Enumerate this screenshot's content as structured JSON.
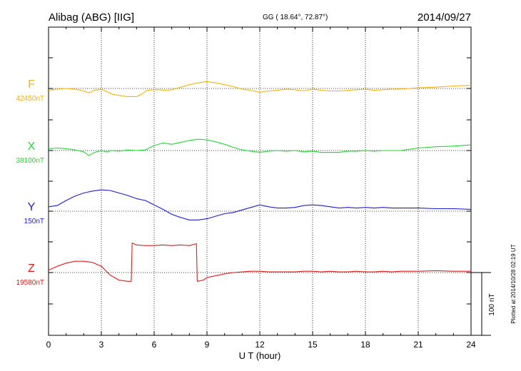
{
  "header": {
    "station": "Alibag (ABG)  [IIG]",
    "coords": "GG ( 18.64°,  72.87°)",
    "date": "2014/09/27"
  },
  "footer": {
    "xlabel": "U T (hour)",
    "plotted": "Plotted at 2014/10/28 02:19 UT",
    "scale": "100 nT"
  },
  "chart_data": {
    "type": "line",
    "title": "Alibag (ABG)  [IIG]",
    "xlabel": "U T (hour)",
    "ylabel": "",
    "xlim": [
      0,
      24
    ],
    "xticks": [
      "0",
      "3",
      "6",
      "9",
      "12",
      "15",
      "18",
      "21",
      "24"
    ],
    "scale_bar_nT": 100,
    "grid": true,
    "series": [
      {
        "name": "F",
        "baseline_label": "42450nT",
        "color": "#f5b316",
        "points": [
          [
            0,
            -3
          ],
          [
            0.5,
            -1
          ],
          [
            1,
            0
          ],
          [
            1.5,
            -1
          ],
          [
            2,
            -4
          ],
          [
            2.3,
            -7
          ],
          [
            2.6,
            -3
          ],
          [
            3,
            -1
          ],
          [
            3.3,
            -5
          ],
          [
            3.6,
            -9
          ],
          [
            4,
            -11
          ],
          [
            4.5,
            -13
          ],
          [
            5,
            -13
          ],
          [
            5.3,
            -9
          ],
          [
            5.6,
            -3
          ],
          [
            6,
            -2
          ],
          [
            6.3,
            -2
          ],
          [
            6.6,
            -3
          ],
          [
            7,
            -2
          ],
          [
            7.5,
            2
          ],
          [
            8,
            6
          ],
          [
            8.5,
            9
          ],
          [
            9,
            11
          ],
          [
            9.5,
            9
          ],
          [
            10,
            6
          ],
          [
            10.5,
            3
          ],
          [
            11,
            -1
          ],
          [
            11.5,
            -3
          ],
          [
            12,
            -6
          ],
          [
            12.5,
            -4
          ],
          [
            13,
            -3
          ],
          [
            13.5,
            -1
          ],
          [
            14,
            -2
          ],
          [
            14.5,
            -4
          ],
          [
            15,
            -1
          ],
          [
            15.5,
            -3
          ],
          [
            16,
            -4
          ],
          [
            16.5,
            -4
          ],
          [
            17,
            -3
          ],
          [
            17.5,
            -2
          ],
          [
            18,
            -1
          ],
          [
            18.5,
            -3
          ],
          [
            19,
            -2
          ],
          [
            19.5,
            -1
          ],
          [
            20,
            -1
          ],
          [
            20.5,
            0
          ],
          [
            21,
            1
          ],
          [
            22,
            2
          ],
          [
            23,
            4
          ],
          [
            24,
            5
          ]
        ]
      },
      {
        "name": "X",
        "baseline_label": "38100nT",
        "color": "#22d933",
        "points": [
          [
            0,
            3
          ],
          [
            0.5,
            4
          ],
          [
            1,
            3
          ],
          [
            1.5,
            1
          ],
          [
            2,
            -2
          ],
          [
            2.3,
            -8
          ],
          [
            2.6,
            -3
          ],
          [
            3,
            0
          ],
          [
            3.3,
            -2
          ],
          [
            3.6,
            0
          ],
          [
            4,
            -1
          ],
          [
            4.5,
            1
          ],
          [
            5,
            0
          ],
          [
            5.5,
            1
          ],
          [
            6,
            8
          ],
          [
            6.5,
            12
          ],
          [
            7,
            10
          ],
          [
            7.5,
            13
          ],
          [
            8,
            16
          ],
          [
            8.5,
            18
          ],
          [
            9,
            17
          ],
          [
            9.5,
            14
          ],
          [
            10,
            10
          ],
          [
            10.5,
            5
          ],
          [
            11,
            1
          ],
          [
            11.5,
            -1
          ],
          [
            12,
            -3
          ],
          [
            12.5,
            -1
          ],
          [
            13,
            0
          ],
          [
            13.5,
            -1
          ],
          [
            14,
            0
          ],
          [
            14.5,
            -2
          ],
          [
            15,
            -1
          ],
          [
            15.5,
            -3
          ],
          [
            16,
            -3
          ],
          [
            16.5,
            -3
          ],
          [
            17,
            -1
          ],
          [
            17.5,
            -1
          ],
          [
            18,
            0
          ],
          [
            18.5,
            -1
          ],
          [
            19,
            0
          ],
          [
            19.5,
            0
          ],
          [
            20,
            0
          ],
          [
            20.5,
            2
          ],
          [
            21,
            4
          ],
          [
            22,
            6
          ],
          [
            23,
            7
          ],
          [
            24,
            9
          ]
        ]
      },
      {
        "name": "Y",
        "baseline_label": "150nT",
        "color": "#1c1cd6",
        "points": [
          [
            0,
            7
          ],
          [
            0.5,
            9
          ],
          [
            1,
            17
          ],
          [
            1.5,
            24
          ],
          [
            2,
            29
          ],
          [
            2.5,
            32
          ],
          [
            3,
            34
          ],
          [
            3.5,
            33
          ],
          [
            4,
            29
          ],
          [
            4.5,
            25
          ],
          [
            5,
            20
          ],
          [
            5.5,
            17
          ],
          [
            6,
            10
          ],
          [
            6.5,
            3
          ],
          [
            7,
            -5
          ],
          [
            7.5,
            -10
          ],
          [
            8,
            -14
          ],
          [
            8.5,
            -14
          ],
          [
            9,
            -12
          ],
          [
            9.5,
            -8
          ],
          [
            10,
            -4
          ],
          [
            10.5,
            -2
          ],
          [
            11,
            2
          ],
          [
            11.5,
            6
          ],
          [
            12,
            10
          ],
          [
            12.5,
            7
          ],
          [
            13,
            5
          ],
          [
            13.5,
            5
          ],
          [
            14,
            6
          ],
          [
            14.5,
            9
          ],
          [
            15,
            10
          ],
          [
            15.5,
            9
          ],
          [
            16,
            7
          ],
          [
            16.5,
            5
          ],
          [
            17,
            6
          ],
          [
            17.5,
            5
          ],
          [
            18,
            6
          ],
          [
            18.5,
            5
          ],
          [
            19,
            6
          ],
          [
            19.5,
            5
          ],
          [
            20,
            5
          ],
          [
            20.5,
            5
          ],
          [
            21,
            5
          ],
          [
            22,
            4
          ],
          [
            23,
            4
          ],
          [
            24,
            3
          ]
        ]
      },
      {
        "name": "Z",
        "baseline_label": "19580nT",
        "color": "#e01c1c",
        "points": [
          [
            0,
            4
          ],
          [
            0.5,
            10
          ],
          [
            1,
            15
          ],
          [
            1.5,
            18
          ],
          [
            2,
            18
          ],
          [
            2.5,
            16
          ],
          [
            3,
            10
          ],
          [
            3.5,
            -4
          ],
          [
            4,
            -12
          ],
          [
            4.5,
            -14
          ],
          [
            4.7,
            -14
          ],
          [
            4.75,
            47
          ],
          [
            5,
            44
          ],
          [
            5.5,
            43
          ],
          [
            6,
            43
          ],
          [
            6.5,
            44
          ],
          [
            7,
            43
          ],
          [
            7.5,
            44
          ],
          [
            8,
            43
          ],
          [
            8.4,
            46
          ],
          [
            8.45,
            -14
          ],
          [
            8.8,
            -12
          ],
          [
            9,
            -8
          ],
          [
            9.5,
            -5
          ],
          [
            10,
            -2
          ],
          [
            10.5,
            0
          ],
          [
            11,
            1
          ],
          [
            11.5,
            2
          ],
          [
            12,
            2
          ],
          [
            12.5,
            1
          ],
          [
            13,
            1
          ],
          [
            13.5,
            1
          ],
          [
            14,
            1
          ],
          [
            14.5,
            2
          ],
          [
            15,
            2
          ],
          [
            15.5,
            1
          ],
          [
            16,
            2
          ],
          [
            16.5,
            1
          ],
          [
            17,
            1
          ],
          [
            17.5,
            2
          ],
          [
            18,
            1
          ],
          [
            18.5,
            1
          ],
          [
            19,
            2
          ],
          [
            19.5,
            1
          ],
          [
            20,
            2
          ],
          [
            20.5,
            2
          ],
          [
            21,
            2
          ],
          [
            22,
            3
          ],
          [
            23,
            2
          ],
          [
            24,
            2
          ]
        ]
      }
    ]
  }
}
